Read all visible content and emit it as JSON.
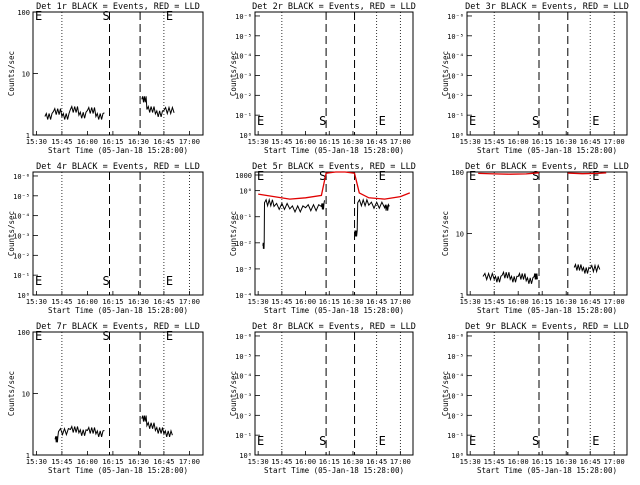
{
  "panels": [
    {
      "title": "Det 1r BLACK = Events, RED = LLD",
      "ylabel": "Counts/sec",
      "xlabel": "Start Time (05-Jan-18 15:28:00)",
      "yticks": [
        "1",
        "10",
        "100"
      ],
      "xticks": [
        "15:30",
        "15:45",
        "16:00",
        "16:15",
        "16:30",
        "16:45",
        "17:00"
      ],
      "markers": {
        "S": "S",
        "E1": "E",
        "E2": "E"
      }
    },
    {
      "title": "Det 2r BLACK = Events, RED = LLD",
      "ylabel": "Counts/sec",
      "xlabel": "Start Time (05-Jan-18 15:28:00)",
      "yticks": [
        "10⁰",
        "10⁻¹",
        "10⁻²",
        "10⁻³",
        "10⁻⁴",
        "10⁻⁵",
        "10⁻⁶"
      ],
      "xticks": [
        "15:30",
        "15:45",
        "16:00",
        "16:15",
        "16:30",
        "16:45",
        "17:00"
      ],
      "markers": {
        "S": "S",
        "E1": "E",
        "E2": "E"
      }
    },
    {
      "title": "Det 3r BLACK = Events, RED = LLD",
      "ylabel": "Counts/sec",
      "xlabel": "Start Time (05-Jan-18 15:28:00)",
      "yticks": [
        "10⁰",
        "10⁻¹",
        "10⁻²",
        "10⁻³",
        "10⁻⁴",
        "10⁻⁵",
        "10⁻⁶"
      ],
      "xticks": [
        "15:30",
        "15:45",
        "16:00",
        "16:15",
        "16:30",
        "16:45",
        "17:00"
      ],
      "markers": {
        "S": "S",
        "E1": "E",
        "E2": "E"
      }
    },
    {
      "title": "Det 4r BLACK = Events, RED = LLD",
      "ylabel": "Counts/sec",
      "xlabel": "Start Time (05-Jan-18 15:28:00)",
      "yticks": [
        "10⁰",
        "10⁻¹",
        "10⁻²",
        "10⁻³",
        "10⁻⁴",
        "10⁻⁵",
        "10⁻⁶"
      ],
      "xticks": [
        "15:30",
        "15:45",
        "16:00",
        "16:15",
        "16:30",
        "16:45",
        "17:00"
      ],
      "markers": {
        "S": "S",
        "E1": "E",
        "E2": "E"
      }
    },
    {
      "title": "Det 5r BLACK = Events, RED = LLD",
      "ylabel": "Counts/sec",
      "xlabel": "Start Time (05-Jan-18 15:28:00)",
      "yticks": [
        "1000",
        "10⁻⁴",
        "10⁻³",
        "10⁻²",
        "10⁻¹",
        "10⁰"
      ],
      "xticks": [
        "15:30",
        "15:45",
        "16:00",
        "16:15",
        "16:30",
        "16:45",
        "17:00"
      ],
      "markers": {
        "S": "S",
        "E1": "E",
        "E2": "E"
      }
    },
    {
      "title": "Det 6r BLACK = Events, RED = LLD",
      "ylabel": "Counts/sec",
      "xlabel": "Start Time (05-Jan-18 15:28:00)",
      "yticks": [
        "1",
        "10",
        "100"
      ],
      "xticks": [
        "15:30",
        "15:45",
        "16:00",
        "16:15",
        "16:30",
        "16:45",
        "17:00"
      ],
      "markers": {
        "S": "S",
        "E1": "E",
        "E2": "E"
      }
    },
    {
      "title": "Det 7r BLACK = Events, RED = LLD",
      "ylabel": "Counts/sec",
      "xlabel": "Start Time (05-Jan-18 15:28:00)",
      "yticks": [
        "1",
        "10",
        "100"
      ],
      "xticks": [
        "15:30",
        "15:45",
        "16:00",
        "16:15",
        "16:30",
        "16:45",
        "17:00"
      ],
      "markers": {
        "S": "S",
        "E1": "E",
        "E2": "E"
      }
    },
    {
      "title": "Det 8r BLACK = Events, RED = LLD",
      "ylabel": "Counts/sec",
      "xlabel": "Start Time (05-Jan-18 15:28:00)",
      "yticks": [
        "10⁰",
        "10⁻¹",
        "10⁻²",
        "10⁻³",
        "10⁻⁴",
        "10⁻⁵",
        "10⁻⁶"
      ],
      "xticks": [
        "15:30",
        "15:45",
        "16:00",
        "16:15",
        "16:30",
        "16:45",
        "17:00"
      ],
      "markers": {
        "S": "S",
        "E1": "E",
        "E2": "E"
      }
    },
    {
      "title": "Det 9r BLACK = Events, RED = LLD",
      "ylabel": "Counts/sec",
      "xlabel": "Start Time (05-Jan-18 15:28:00)",
      "yticks": [
        "10⁰",
        "10⁻¹",
        "10⁻²",
        "10⁻³",
        "10⁻⁴",
        "10⁻⁵",
        "10⁻⁶"
      ],
      "xticks": [
        "15:30",
        "15:45",
        "16:00",
        "16:15",
        "16:30",
        "16:45",
        "17:00"
      ],
      "markers": {
        "S": "S",
        "E1": "E",
        "E2": "E"
      }
    }
  ],
  "chart_data": [
    {
      "type": "line",
      "title": "Det 1r BLACK = Events, RED = LLD",
      "scale": "log",
      "ylim": [
        1,
        100
      ],
      "xlim": [
        "15:28",
        "17:08"
      ],
      "grid_lines": [
        "15:45",
        "16:45"
      ],
      "dashed_lines": [
        "16:13",
        "16:31"
      ],
      "series": [
        {
          "name": "BLACK = Events",
          "color": "#000000",
          "segments": [
            [
              [
                "15:35",
                2.0
              ],
              [
                "15:40",
                2.4
              ],
              [
                "15:45",
                2.0
              ],
              [
                "15:50",
                2.6
              ],
              [
                "15:55",
                2.1
              ],
              [
                "16:00",
                2.5
              ],
              [
                "16:05",
                2.0
              ],
              [
                "16:10",
                2.3
              ]
            ],
            [
              [
                "16:32",
                3.8
              ],
              [
                "16:35",
                2.6
              ],
              [
                "16:40",
                2.2
              ],
              [
                "16:45",
                2.5
              ],
              [
                "16:51",
                2.3
              ]
            ]
          ]
        }
      ]
    },
    {
      "type": "line",
      "title": "Det 2r BLACK = Events, RED = LLD",
      "scale": "log",
      "xlim": [
        "15:28",
        "17:08"
      ],
      "grid_lines": [
        "15:45",
        "16:45",
        "17:00"
      ],
      "dashed_lines": [
        "16:13",
        "16:31"
      ],
      "series": []
    },
    {
      "type": "line",
      "title": "Det 3r BLACK = Events, RED = LLD",
      "scale": "log",
      "xlim": [
        "15:28",
        "17:08"
      ],
      "grid_lines": [
        "15:45",
        "16:45",
        "17:00"
      ],
      "dashed_lines": [
        "16:13",
        "16:31"
      ],
      "series": []
    },
    {
      "type": "line",
      "title": "Det 4r BLACK = Events, RED = LLD",
      "scale": "log",
      "xlim": [
        "15:28",
        "17:08"
      ],
      "grid_lines": [
        "15:45",
        "16:45",
        "17:00"
      ],
      "dashed_lines": [
        "16:13",
        "16:31"
      ],
      "series": []
    },
    {
      "type": "line",
      "title": "Det 5r BLACK = Events, RED = LLD",
      "scale": "log",
      "xlim": [
        "15:28",
        "17:08"
      ],
      "grid_lines": [
        "15:45",
        "16:45",
        "17:00"
      ],
      "dashed_lines": [
        "16:13",
        "16:31"
      ],
      "series": [
        {
          "name": "RED = LLD",
          "color": "#e00000",
          "segments": [
            [
              [
                "15:30",
                0.82
              ],
              [
                "15:40",
                0.8
              ],
              [
                "15:50",
                0.78
              ],
              [
                "16:00",
                0.79
              ],
              [
                "16:10",
                0.81
              ],
              [
                "16:13",
                0.99
              ],
              [
                "16:19",
                1.0
              ],
              [
                "16:25",
                1.0
              ],
              [
                "16:31",
                0.99
              ],
              [
                "16:34",
                0.83
              ],
              [
                "16:40",
                0.79
              ],
              [
                "16:50",
                0.78
              ],
              [
                "17:00",
                0.8
              ],
              [
                "17:06",
                0.83
              ]
            ]
          ]
        },
        {
          "name": "BLACK = Events",
          "color": "#000000",
          "segments": [
            [
              [
                "15:33",
                0.4
              ],
              [
                "15:34",
                0.75
              ],
              [
                "15:40",
                0.72
              ],
              [
                "15:50",
                0.7
              ],
              [
                "16:00",
                0.71
              ],
              [
                "16:10",
                0.72
              ],
              [
                "16:12",
                0.77
              ]
            ],
            [
              [
                "16:31",
                0.5
              ],
              [
                "16:33",
                0.75
              ],
              [
                "16:40",
                0.73
              ],
              [
                "16:50",
                0.71
              ],
              [
                "16:53",
                0.72
              ]
            ]
          ]
        }
      ]
    },
    {
      "type": "line",
      "title": "Det 6r BLACK = Events, RED = LLD",
      "scale": "log",
      "ylim": [
        1,
        100
      ],
      "xlim": [
        "15:28",
        "17:08"
      ],
      "grid_lines": [
        "15:45",
        "16:45",
        "17:00"
      ],
      "dashed_lines": [
        "16:13",
        "16:31"
      ],
      "series": [
        {
          "name": "RED = LLD",
          "color": "#e00000",
          "segments": [
            [
              [
                "15:35",
                95
              ],
              [
                "15:45",
                93
              ],
              [
                "15:55",
                92
              ],
              [
                "16:05",
                93
              ],
              [
                "16:13",
                97
              ]
            ],
            [
              [
                "16:31",
                96
              ],
              [
                "16:40",
                94
              ],
              [
                "16:50",
                95
              ],
              [
                "16:55",
                97
              ]
            ]
          ]
        },
        {
          "name": "BLACK = Events",
          "color": "#000000",
          "segments": [
            [
              [
                "15:38",
                2.0
              ],
              [
                "15:45",
                1.8
              ],
              [
                "15:50",
                2.1
              ],
              [
                "15:55",
                1.8
              ],
              [
                "16:00",
                2.0
              ],
              [
                "16:05",
                1.7
              ],
              [
                "16:10",
                2.0
              ],
              [
                "16:12",
                1.8
              ]
            ],
            [
              [
                "16:35",
                2.8
              ],
              [
                "16:40",
                2.5
              ],
              [
                "16:45",
                2.7
              ],
              [
                "16:51",
                2.6
              ]
            ]
          ]
        }
      ]
    },
    {
      "type": "line",
      "title": "Det 7r BLACK = Events, RED = LLD",
      "scale": "log",
      "ylim": [
        1,
        100
      ],
      "xlim": [
        "15:28",
        "17:08"
      ],
      "grid_lines": [
        "15:45",
        "16:45"
      ],
      "dashed_lines": [
        "16:13",
        "16:31"
      ],
      "series": [
        {
          "name": "BLACK = Events",
          "color": "#000000",
          "segments": [
            [
              [
                "15:41",
                1.8
              ],
              [
                "15:43",
                2.4
              ],
              [
                "15:50",
                2.6
              ],
              [
                "15:55",
                2.3
              ],
              [
                "16:00",
                2.5
              ],
              [
                "16:05",
                2.2
              ],
              [
                "16:10",
                2.5
              ]
            ],
            [
              [
                "16:32",
                3.9
              ],
              [
                "16:35",
                3.0
              ],
              [
                "16:40",
                2.5
              ],
              [
                "16:45",
                2.2
              ],
              [
                "16:50",
                2.1
              ]
            ]
          ]
        }
      ]
    },
    {
      "type": "line",
      "title": "Det 8r BLACK = Events, RED = LLD",
      "scale": "log",
      "xlim": [
        "15:28",
        "17:08"
      ],
      "grid_lines": [
        "15:45",
        "16:45",
        "17:00"
      ],
      "dashed_lines": [
        "16:13",
        "16:31"
      ],
      "series": []
    },
    {
      "type": "line",
      "title": "Det 9r BLACK = Events, RED = LLD",
      "scale": "log",
      "xlim": [
        "15:28",
        "17:08"
      ],
      "grid_lines": [
        "15:45",
        "16:45",
        "17:00"
      ],
      "dashed_lines": [
        "16:13",
        "16:31"
      ],
      "series": []
    }
  ]
}
